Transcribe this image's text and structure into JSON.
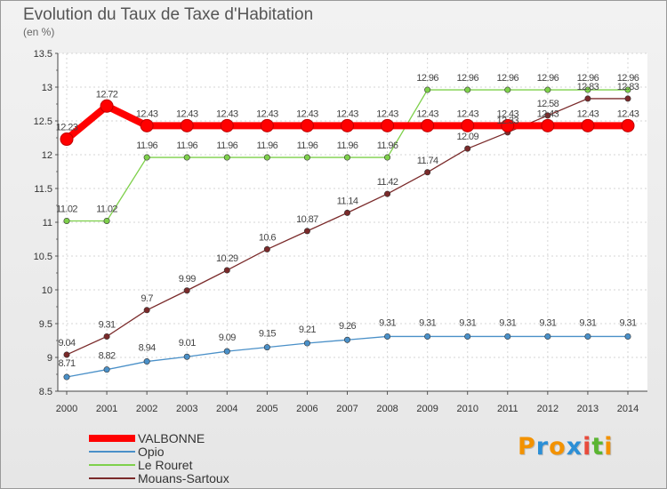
{
  "title": "Evolution du Taux de Taxe d'Habitation",
  "subtitle": "(en %)",
  "logo": {
    "letters": [
      "P",
      "r",
      "o",
      "x",
      "i",
      "t",
      "i"
    ],
    "colors": [
      "#f39200",
      "#2c8fd6",
      "#f39200",
      "#2c8fd6",
      "#e84b3c",
      "#5bb532",
      "#f39200"
    ]
  },
  "chart_data": {
    "type": "line",
    "title": "Evolution du Taux de Taxe d'Habitation",
    "ylabel": "(en %)",
    "xlabel": "",
    "x": [
      "2000",
      "2001",
      "2002",
      "2003",
      "2004",
      "2005",
      "2006",
      "2007",
      "2008",
      "2009",
      "2010",
      "2011",
      "2012",
      "2013",
      "2014"
    ],
    "ylim": [
      8.5,
      13.5
    ],
    "yticks": [
      "8.5",
      "9",
      "9.5",
      "10",
      "10.5",
      "11",
      "11.5",
      "12",
      "12.5",
      "13",
      "13.5"
    ],
    "grid": true,
    "legend_position": "bottom-left",
    "series": [
      {
        "name": "VALBONNE",
        "color": "#ff0000",
        "emphasis": true,
        "values": [
          12.23,
          12.72,
          12.43,
          12.43,
          12.43,
          12.43,
          12.43,
          12.43,
          12.43,
          12.43,
          12.43,
          12.43,
          12.43,
          12.43,
          12.43
        ],
        "labels": [
          "12.23",
          "12.72",
          "12.43",
          "12.43",
          "12.43",
          "12.43",
          "12.43",
          "12.43",
          "12.43",
          "12.43",
          "12.43",
          "12.43",
          "12.43",
          "12.43",
          "12.43"
        ]
      },
      {
        "name": "Opio",
        "color": "#4a90c8",
        "emphasis": false,
        "values": [
          8.71,
          8.82,
          8.94,
          9.01,
          9.09,
          9.15,
          9.21,
          9.26,
          9.31,
          9.31,
          9.31,
          9.31,
          9.31,
          9.31,
          9.31
        ],
        "labels": [
          "8.71",
          "8.82",
          "8.94",
          "9.01",
          "9.09",
          "9.15",
          "9.21",
          "9.26",
          "9.31",
          "9.31",
          "9.31",
          "9.31",
          "9.31",
          "9.31",
          "9.31"
        ]
      },
      {
        "name": "Le Rouret",
        "color": "#7ed04b",
        "emphasis": false,
        "values": [
          11.02,
          11.02,
          11.96,
          11.96,
          11.96,
          11.96,
          11.96,
          11.96,
          11.96,
          12.96,
          12.96,
          12.96,
          12.96,
          12.96,
          12.96
        ],
        "labels": [
          "11.02",
          "11.02",
          "11.96",
          "11.96",
          "11.96",
          "11.96",
          "11.96",
          "11.96",
          "11.96",
          "12.96",
          "12.96",
          "12.96",
          "12.96",
          "12.96",
          "12.96"
        ]
      },
      {
        "name": "Mouans-Sartoux",
        "color": "#7a2a2a",
        "emphasis": false,
        "values": [
          9.04,
          9.31,
          9.7,
          9.99,
          10.29,
          10.6,
          10.87,
          11.14,
          11.42,
          11.74,
          12.09,
          12.33,
          12.58,
          12.83,
          12.83
        ],
        "labels": [
          "9.04",
          "9.31",
          "9.7",
          "9.99",
          "10.29",
          "10.6",
          "10.87",
          "11.14",
          "11.42",
          "11.74",
          "12.09",
          "12.33",
          "12.58",
          "12.83",
          "12.83"
        ]
      }
    ]
  }
}
